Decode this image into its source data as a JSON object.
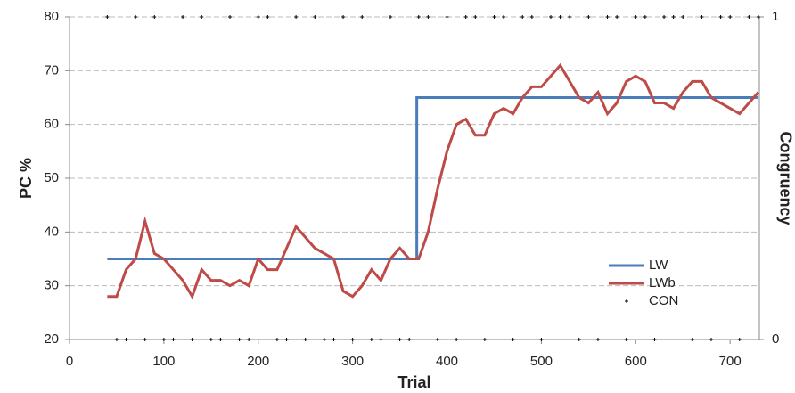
{
  "chart_data": {
    "type": "line",
    "x_label": "Trial",
    "y_label": "PC %",
    "y2_label": "Congruency",
    "xlim": [
      0,
      731
    ],
    "xticks": [
      0,
      100,
      200,
      300,
      400,
      500,
      600,
      700
    ],
    "ylim": [
      20,
      80
    ],
    "yticks": [
      20,
      30,
      40,
      50,
      60,
      70,
      80
    ],
    "y2lim": [
      0,
      1
    ],
    "y2ticks": [
      0,
      1
    ],
    "grid": true,
    "legend": "lower right",
    "series": [
      {
        "name": "LW",
        "color": "#4a7ebb",
        "type": "line",
        "x": [
          40,
          368,
          368,
          730
        ],
        "values": [
          35,
          35,
          65,
          65
        ]
      },
      {
        "name": "LWb",
        "color": "#be4b48",
        "type": "line",
        "x": [
          40,
          50,
          60,
          70,
          80,
          90,
          100,
          110,
          120,
          130,
          140,
          150,
          160,
          170,
          180,
          190,
          200,
          210,
          220,
          230,
          240,
          250,
          260,
          270,
          280,
          290,
          300,
          310,
          320,
          330,
          340,
          350,
          360,
          370,
          380,
          390,
          400,
          410,
          420,
          430,
          440,
          450,
          460,
          470,
          480,
          490,
          500,
          510,
          520,
          530,
          540,
          550,
          560,
          570,
          580,
          590,
          600,
          610,
          620,
          630,
          640,
          650,
          660,
          670,
          680,
          690,
          700,
          710,
          720,
          730
        ],
        "values": [
          28,
          28,
          33,
          35,
          42,
          36,
          35,
          33,
          31,
          28,
          33,
          31,
          31,
          30,
          31,
          30,
          35,
          33,
          33,
          37,
          41,
          39,
          37,
          36,
          35,
          29,
          28,
          30,
          33,
          31,
          35,
          37,
          35,
          35,
          40,
          48,
          55,
          60,
          61,
          58,
          58,
          62,
          63,
          62,
          65,
          67,
          67,
          69,
          71,
          68,
          65,
          64,
          66,
          62,
          64,
          68,
          69,
          68,
          64,
          64,
          63,
          66,
          68,
          68,
          65,
          64,
          63,
          62,
          64,
          66
        ]
      },
      {
        "name": "CON",
        "color": "#000000",
        "type": "scatter",
        "axis": "y2",
        "x": [
          40,
          50,
          60,
          70,
          80,
          90,
          100,
          110,
          120,
          130,
          140,
          150,
          160,
          170,
          180,
          190,
          200,
          210,
          220,
          230,
          240,
          250,
          260,
          270,
          280,
          290,
          300,
          310,
          320,
          330,
          340,
          350,
          360,
          370,
          380,
          390,
          400,
          410,
          420,
          430,
          440,
          450,
          460,
          470,
          480,
          490,
          500,
          510,
          520,
          530,
          540,
          550,
          560,
          570,
          580,
          590,
          600,
          610,
          620,
          630,
          640,
          650,
          660,
          670,
          680,
          690,
          700,
          710,
          720,
          730
        ],
        "values": [
          1,
          0,
          0,
          1,
          0,
          1,
          0,
          0,
          1,
          0,
          1,
          0,
          0,
          1,
          0,
          0,
          1,
          1,
          0,
          0,
          1,
          0,
          1,
          0,
          0,
          1,
          0,
          1,
          0,
          0,
          1,
          0,
          0,
          1,
          1,
          0,
          1,
          0,
          1,
          1,
          0,
          1,
          1,
          0,
          1,
          1,
          0,
          1,
          1,
          1,
          0,
          1,
          0,
          1,
          1,
          0,
          1,
          1,
          0,
          1,
          1,
          1,
          0,
          1,
          0,
          1,
          1,
          0,
          1,
          1
        ]
      }
    ]
  }
}
